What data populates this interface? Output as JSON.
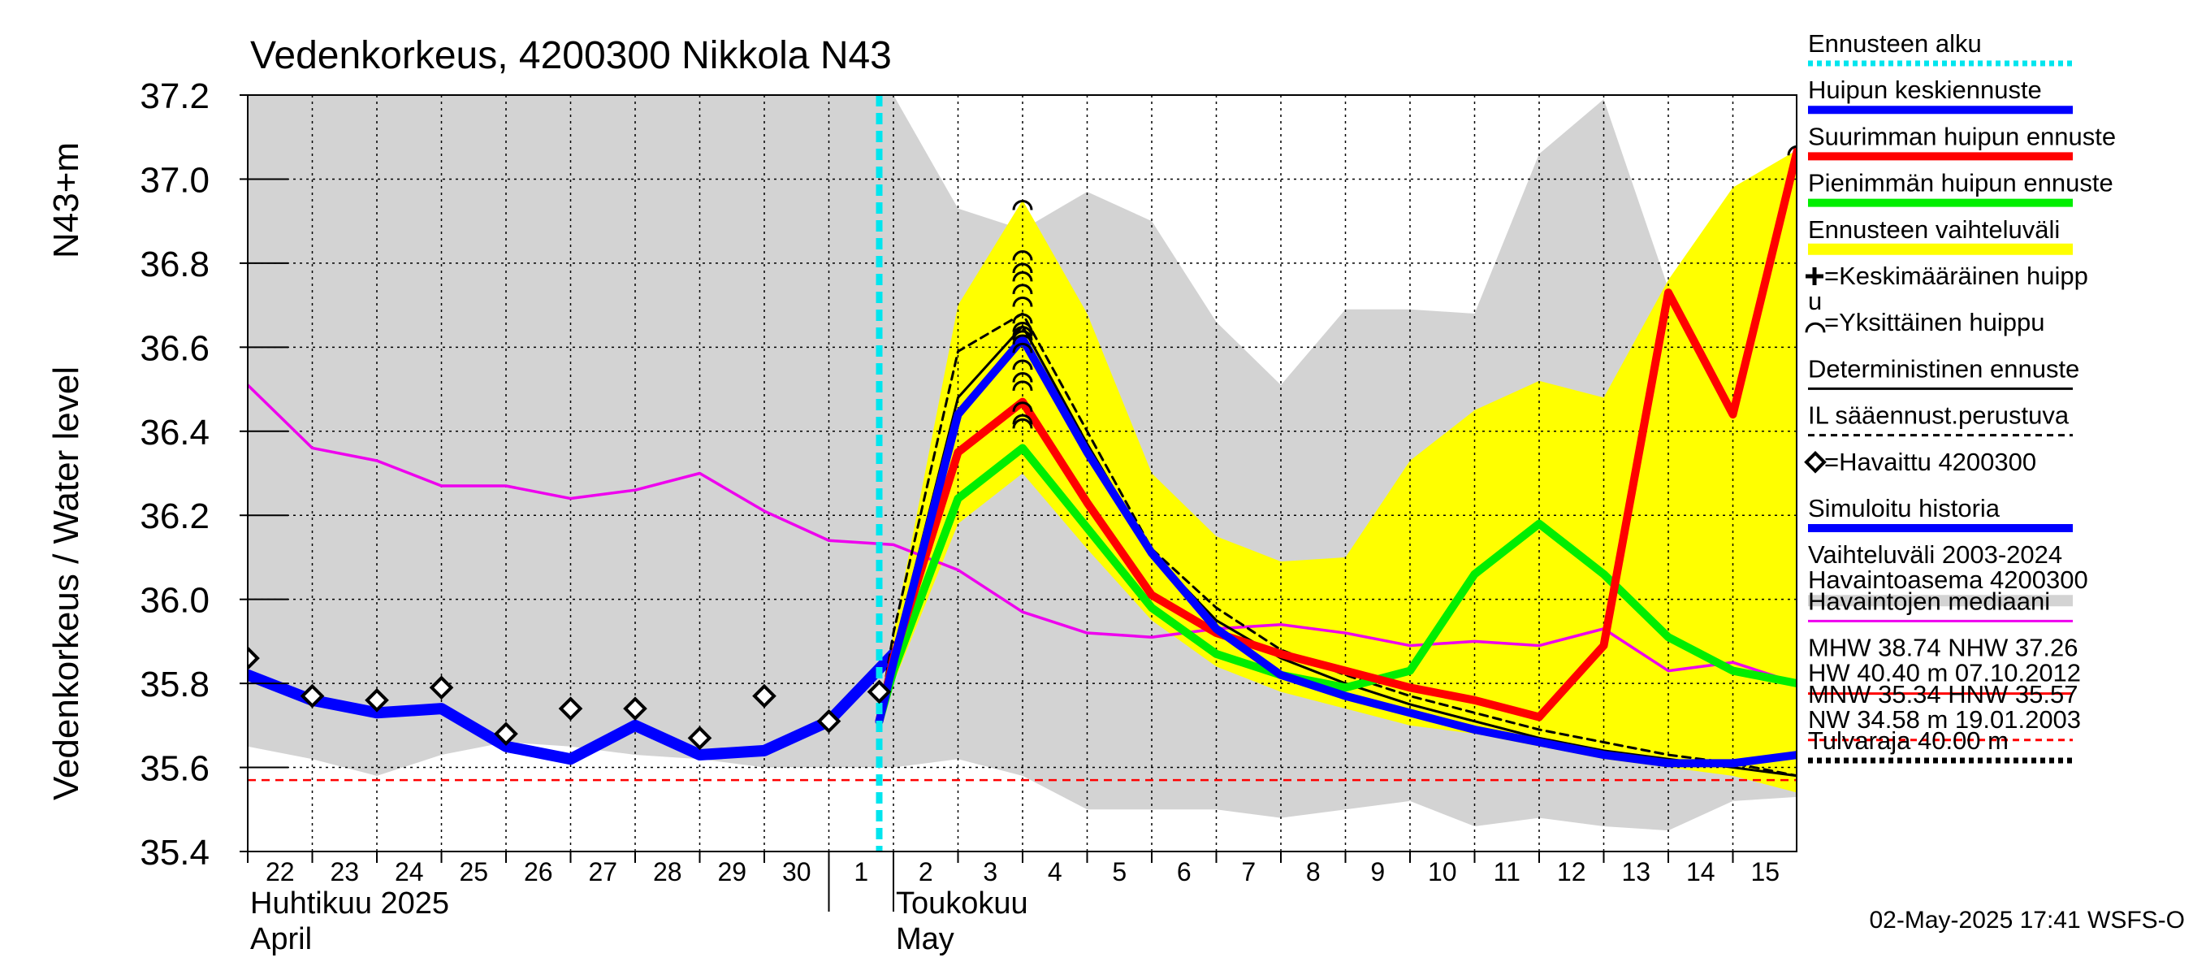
{
  "chart_data": {
    "type": "line",
    "title": "Vedenkorkeus, 4200300 Nikkola N43",
    "ylabel": "Vedenkorkeus / Water level",
    "ylabel_unit": "N43+m",
    "ylim": [
      35.4,
      37.2
    ],
    "yticks": [
      "35.4",
      "35.6",
      "35.8",
      "36.0",
      "36.2",
      "36.4",
      "36.6",
      "36.8",
      "37.0",
      "37.2"
    ],
    "grid": true,
    "legend_position": "right",
    "x_day_labels": [
      "22",
      "23",
      "24",
      "25",
      "26",
      "27",
      "28",
      "29",
      "30",
      "1",
      "2",
      "3",
      "4",
      "5",
      "6",
      "7",
      "8",
      "9",
      "10",
      "11",
      "12",
      "13",
      "14",
      "15"
    ],
    "month_labels": [
      {
        "line1": "Huhtikuu  2025",
        "line2": "April"
      },
      {
        "line1": "Toukokuu",
        "line2": "May"
      }
    ],
    "forecast_start_day": 1.78,
    "flood_limit_line_value": 35.57,
    "series": [
      {
        "name": "Vaihteluväli 2003-2024",
        "kind": "band",
        "color": "#d3d3d3",
        "x": [
          -8.0,
          -7,
          -6,
          -5,
          -4,
          -3,
          -2,
          -1,
          0,
          1,
          2,
          3,
          4,
          5,
          6,
          7,
          8,
          9,
          10,
          11,
          12,
          13,
          14,
          15,
          16.0
        ],
        "lower": [
          35.65,
          35.62,
          35.58,
          35.63,
          35.66,
          35.65,
          35.63,
          35.62,
          35.6,
          35.6,
          35.6,
          35.62,
          35.58,
          35.5,
          35.5,
          35.5,
          35.48,
          35.5,
          35.52,
          35.46,
          35.48,
          35.46,
          35.45,
          35.52,
          35.53
        ],
        "upper": [
          37.2,
          37.2,
          37.2,
          37.2,
          37.2,
          37.2,
          37.2,
          37.2,
          37.2,
          37.2,
          37.2,
          36.93,
          36.88,
          36.97,
          36.9,
          36.66,
          36.51,
          36.69,
          36.69,
          36.68,
          37.06,
          37.19,
          36.74,
          36.72,
          36.49
        ]
      },
      {
        "name": "Ennusteen vaihteluväli",
        "kind": "band",
        "color": "#ffff00",
        "x": [
          1.78,
          2,
          3,
          4,
          5,
          6,
          7,
          8,
          9,
          10,
          11,
          12,
          13,
          14,
          15,
          16.0
        ],
        "lower": [
          35.68,
          35.8,
          36.18,
          36.3,
          36.12,
          35.95,
          35.84,
          35.78,
          35.74,
          35.7,
          35.68,
          35.65,
          35.62,
          35.6,
          35.58,
          35.54
        ],
        "upper": [
          35.72,
          35.92,
          36.7,
          36.95,
          36.68,
          36.3,
          36.15,
          36.09,
          36.1,
          36.33,
          36.45,
          36.52,
          36.48,
          36.76,
          36.98,
          37.07
        ]
      },
      {
        "name": "Havaintojen mediaani",
        "kind": "line",
        "color": "#ee00ee",
        "width": 3.5,
        "x": [
          -8.0,
          -7,
          -6,
          -5,
          -4,
          -3,
          -2,
          -1,
          0,
          1,
          2,
          3,
          4,
          5,
          6,
          7,
          8,
          9,
          10,
          11,
          12,
          13,
          14,
          15,
          16.0
        ],
        "values": [
          36.51,
          36.36,
          36.33,
          36.27,
          36.27,
          36.24,
          36.26,
          36.3,
          36.21,
          36.14,
          36.13,
          36.07,
          35.97,
          35.92,
          35.91,
          35.93,
          35.94,
          35.92,
          35.89,
          35.9,
          35.89,
          35.93,
          35.83,
          35.85,
          35.8
        ]
      },
      {
        "name": "Simuloitu historia",
        "kind": "line",
        "color": "#0000ff",
        "width": 14,
        "x": [
          -8.0,
          -7,
          -6,
          -5,
          -4,
          -3,
          -2,
          -1,
          0,
          1,
          2
        ],
        "values": [
          35.82,
          35.76,
          35.73,
          35.74,
          35.65,
          35.62,
          35.7,
          35.63,
          35.64,
          35.71,
          35.87
        ]
      },
      {
        "name": "IL sääennust.perustuva",
        "kind": "line",
        "color": "#000000",
        "width": 3,
        "dash": "10,7",
        "x": [
          1.78,
          2,
          3,
          4,
          5,
          6,
          7,
          8,
          9,
          10,
          11,
          12,
          13,
          14,
          15,
          16.0
        ],
        "values": [
          35.72,
          35.92,
          36.59,
          36.68,
          36.4,
          36.12,
          35.98,
          35.88,
          35.82,
          35.77,
          35.73,
          35.69,
          35.66,
          35.63,
          35.61,
          35.58
        ]
      },
      {
        "name": "Deterministinen ennuste",
        "kind": "line",
        "color": "#000000",
        "width": 3,
        "x": [
          1.78,
          2,
          3,
          4,
          5,
          6,
          7,
          8,
          9,
          10,
          11,
          12,
          13,
          14,
          15,
          16.0
        ],
        "values": [
          35.71,
          35.87,
          36.48,
          36.65,
          36.37,
          36.11,
          35.95,
          35.86,
          35.8,
          35.75,
          35.71,
          35.67,
          35.64,
          35.62,
          35.6,
          35.58
        ]
      },
      {
        "name": "Pienimmän huipun ennuste",
        "kind": "line",
        "color": "#00ee00",
        "width": 10,
        "x": [
          1.78,
          2,
          3,
          4,
          5,
          6,
          7,
          8,
          9,
          10,
          11,
          12,
          13,
          14,
          15,
          16.0
        ],
        "values": [
          35.71,
          35.83,
          36.24,
          36.36,
          36.17,
          35.98,
          35.87,
          35.82,
          35.79,
          35.83,
          36.06,
          36.18,
          36.06,
          35.91,
          35.83,
          35.8
        ]
      },
      {
        "name": "Suurimman huipun ennuste",
        "kind": "line",
        "color": "#ff0000",
        "width": 10,
        "x": [
          1.78,
          2,
          3,
          4,
          5,
          6,
          7,
          8,
          9,
          10,
          11,
          12,
          13,
          14,
          15,
          16.0
        ],
        "values": [
          35.71,
          35.86,
          36.35,
          36.47,
          36.23,
          36.01,
          35.92,
          35.87,
          35.83,
          35.79,
          35.76,
          35.72,
          35.89,
          36.73,
          36.44,
          37.07
        ]
      },
      {
        "name": "Huipun keskiennuste",
        "kind": "line",
        "color": "#0000ff",
        "width": 10,
        "x": [
          1.78,
          2,
          3,
          4,
          5,
          6,
          7,
          8,
          9,
          10,
          11,
          12,
          13,
          14,
          15,
          16.0
        ],
        "values": [
          35.71,
          35.85,
          36.44,
          36.62,
          36.35,
          36.11,
          35.93,
          35.82,
          35.77,
          35.73,
          35.69,
          35.66,
          35.63,
          35.61,
          35.61,
          35.63
        ]
      }
    ],
    "observed": {
      "name": "=Havaittu 4200300",
      "x": [
        -8.0,
        -7,
        -6,
        -5,
        -4,
        -3,
        -2,
        -1,
        0,
        1,
        1.78
      ],
      "values": [
        35.86,
        35.77,
        35.76,
        35.79,
        35.68,
        35.74,
        35.74,
        35.67,
        35.77,
        35.71,
        35.78
      ]
    },
    "individual_peaks": {
      "name": "=Yksittäinen huippu",
      "x": 4,
      "values": [
        36.94,
        36.82,
        36.79,
        36.77,
        36.74,
        36.71,
        36.67,
        36.65,
        36.64,
        36.63,
        36.62,
        36.6,
        36.56,
        36.53,
        36.51,
        36.46,
        36.43,
        36.42
      ]
    },
    "individual_peaks_late": {
      "x": 16.0,
      "values": [
        37.07
      ]
    },
    "mean_peak_label": "=Keskimääräinen huipp\nu"
  },
  "legend": [
    {
      "label": "Ennusteen alku",
      "color": "#00e5ee",
      "style": "dotted-thick"
    },
    {
      "label": "Huipun keskiennuste",
      "color": "#0000ff",
      "style": "thick"
    },
    {
      "label": "Suurimman huipun ennuste",
      "color": "#ff0000",
      "style": "thick"
    },
    {
      "label": "Pienimmän huipun ennuste",
      "color": "#00ee00",
      "style": "thick"
    },
    {
      "label": "Ennusteen vaihteluväli",
      "color": "#ffff00",
      "style": "band"
    },
    {
      "label": "=Keskimääräinen huipp",
      "label2": "u",
      "color": "#000000",
      "style": "none"
    },
    {
      "label": "=Yksittäinen huippu",
      "color": "#000000",
      "style": "none"
    },
    {
      "label": "Deterministinen ennuste",
      "color": "#000000",
      "style": "thin"
    },
    {
      "label": "IL sääennust.perustuva",
      "color": "#000000",
      "style": "dashed"
    },
    {
      "label": "=Havaittu 4200300",
      "color": "#000000",
      "style": "none"
    },
    {
      "label": "Simuloitu historia",
      "color": "#0000ff",
      "style": "thick"
    },
    {
      "label": "Vaihteluväli 2003-2024",
      "label2": " Havaintoasema 4200300",
      "color": "#d3d3d3",
      "style": "band"
    },
    {
      "label": "Havaintojen mediaani",
      "color": "#ee00ee",
      "style": "thin"
    },
    {
      "label": "MHW  38.74 NHW  37.26",
      "label2": "HW  40.40 m 07.10.2012",
      "color": "#ff0000",
      "style": "thin"
    },
    {
      "label": "MNW  35.34 HNW  35.57",
      "label2": "NW  34.58 m 19.01.2003",
      "color": "#ff0000",
      "style": "dashed"
    },
    {
      "label": "Tulvaraja 40.00 m",
      "color": "#000000",
      "style": "dotted-thick"
    }
  ],
  "timestamp": "02-May-2025 17:41 WSFS-O"
}
